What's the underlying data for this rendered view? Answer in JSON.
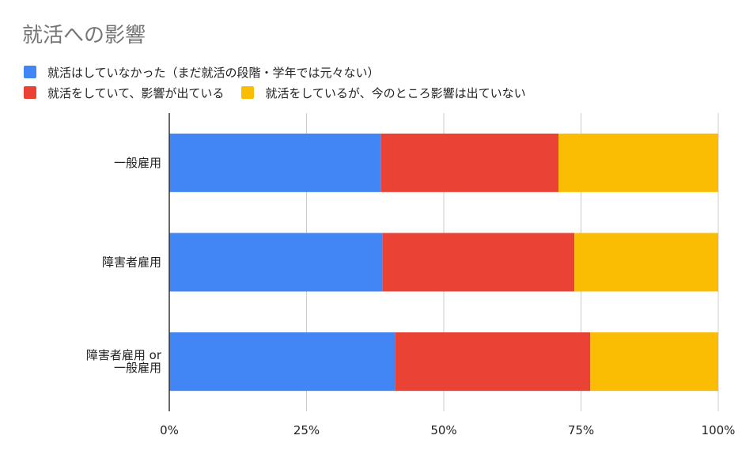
{
  "chart_data": {
    "type": "bar",
    "orientation": "horizontal",
    "stacked": "percent",
    "title": "就活への影響",
    "categories": [
      "一般雇用",
      "障害者雇用",
      "障害者雇用 or\n一般雇用"
    ],
    "series": [
      {
        "name": "就活はしていなかった（まだ就活の段階・学年では元々ない）",
        "color": "#4285f4",
        "values": [
          38.6,
          38.8,
          41.1
        ]
      },
      {
        "name": "就活をしていて、影響が出ている",
        "color": "#ea4335",
        "values": [
          32.3,
          35.0,
          35.6
        ]
      },
      {
        "name": "就活をしているが、今のところ影響は出ていない",
        "color": "#fbbc04",
        "values": [
          29.1,
          26.2,
          23.3
        ]
      }
    ],
    "xlim": [
      0,
      100
    ],
    "xticks": [
      "0%",
      "25%",
      "50%",
      "75%",
      "100%"
    ],
    "grid": true,
    "legend_position": "top"
  }
}
